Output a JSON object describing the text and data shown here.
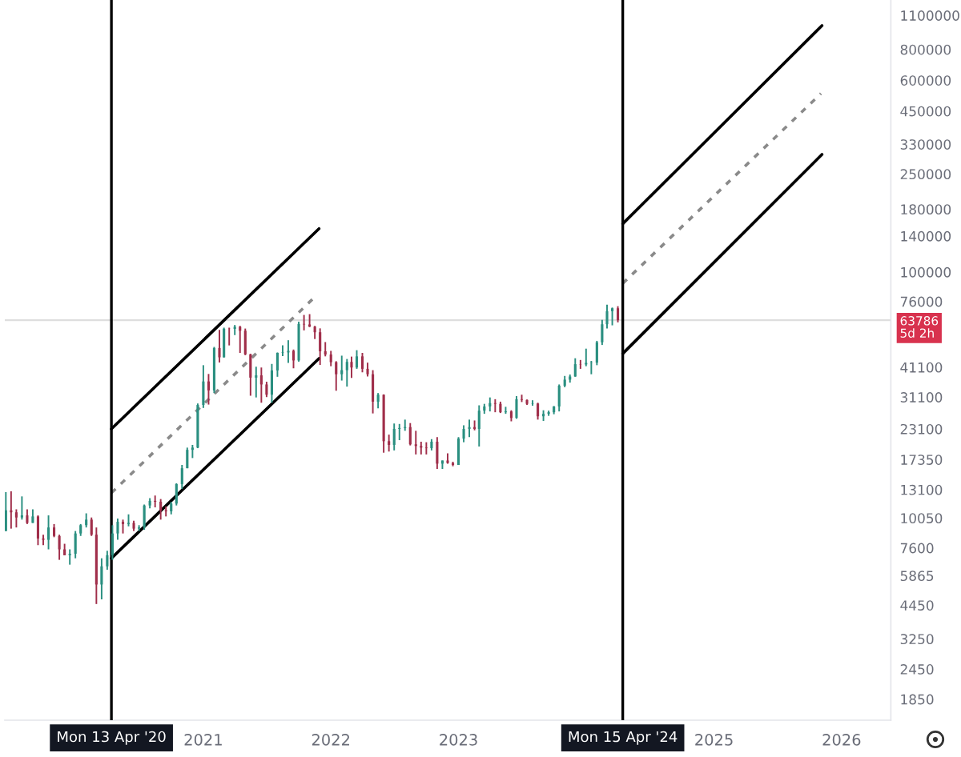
{
  "chart_data": {
    "type": "candlestick",
    "x": [
      "2019-06-16",
      "2019-07-01",
      "2019-07-16",
      "2019-08-01",
      "2019-08-16",
      "2019-09-01",
      "2019-09-16",
      "2019-10-01",
      "2019-10-16",
      "2019-11-01",
      "2019-11-16",
      "2019-12-01",
      "2019-12-16",
      "2020-01-01",
      "2020-01-16",
      "2020-02-01",
      "2020-02-16",
      "2020-03-01",
      "2020-03-16",
      "2020-04-01",
      "2020-04-16",
      "2020-05-01",
      "2020-05-16",
      "2020-06-01",
      "2020-06-16",
      "2020-07-01",
      "2020-07-16",
      "2020-08-01",
      "2020-08-16",
      "2020-09-01",
      "2020-09-16",
      "2020-10-01",
      "2020-10-16",
      "2020-11-01",
      "2020-11-16",
      "2020-12-01",
      "2020-12-16",
      "2021-01-01",
      "2021-01-16",
      "2021-02-01",
      "2021-02-16",
      "2021-03-01",
      "2021-03-16",
      "2021-04-01",
      "2021-04-16",
      "2021-05-01",
      "2021-05-16",
      "2021-06-01",
      "2021-06-16",
      "2021-07-01",
      "2021-07-16",
      "2021-08-01",
      "2021-08-16",
      "2021-09-01",
      "2021-09-16",
      "2021-10-01",
      "2021-10-16",
      "2021-11-01",
      "2021-11-16",
      "2021-12-01",
      "2021-12-16",
      "2022-01-01",
      "2022-01-16",
      "2022-02-01",
      "2022-02-16",
      "2022-03-01",
      "2022-03-16",
      "2022-04-01",
      "2022-04-16",
      "2022-05-01",
      "2022-05-16",
      "2022-06-01",
      "2022-06-16",
      "2022-07-01",
      "2022-07-16",
      "2022-08-01",
      "2022-08-16",
      "2022-09-01",
      "2022-09-16",
      "2022-10-01",
      "2022-10-16",
      "2022-11-01",
      "2022-11-16",
      "2022-12-01",
      "2022-12-16",
      "2023-01-01",
      "2023-01-16",
      "2023-02-01",
      "2023-02-16",
      "2023-03-01",
      "2023-03-16",
      "2023-04-01",
      "2023-04-16",
      "2023-05-01",
      "2023-05-16",
      "2023-06-01",
      "2023-06-16",
      "2023-07-01",
      "2023-07-16",
      "2023-08-01",
      "2023-08-16",
      "2023-09-01",
      "2023-09-16",
      "2023-10-01",
      "2023-10-16",
      "2023-11-01",
      "2023-11-16",
      "2023-12-01",
      "2023-12-16",
      "2024-01-01",
      "2024-01-16",
      "2024-02-01",
      "2024-02-16",
      "2024-03-01",
      "2024-03-16",
      "2024-04-01"
    ],
    "ohlc": [
      [
        8900,
        12800,
        8900,
        10800
      ],
      [
        10800,
        12900,
        9100,
        10600
      ],
      [
        10600,
        10900,
        9200,
        10100
      ],
      [
        10100,
        12300,
        9900,
        10300
      ],
      [
        10300,
        10900,
        9500,
        9600
      ],
      [
        9600,
        10900,
        9600,
        10200
      ],
      [
        10200,
        10300,
        7800,
        8300
      ],
      [
        8300,
        8600,
        7800,
        8200
      ],
      [
        8200,
        10300,
        7500,
        9200
      ],
      [
        9200,
        9500,
        8400,
        8500
      ],
      [
        8500,
        8600,
        6800,
        7500
      ],
      [
        7500,
        7900,
        7100,
        7100
      ],
      [
        7100,
        7500,
        6500,
        7200
      ],
      [
        7200,
        8900,
        6900,
        8700
      ],
      [
        8700,
        9500,
        8500,
        9400
      ],
      [
        9400,
        10500,
        9200,
        9900
      ],
      [
        9900,
        10100,
        8500,
        8600
      ],
      [
        8600,
        9200,
        4500,
        5400
      ],
      [
        5400,
        6900,
        4700,
        6400
      ],
      [
        6400,
        7400,
        6200,
        7100
      ],
      [
        7100,
        9400,
        6800,
        8700
      ],
      [
        8700,
        10000,
        8200,
        9700
      ],
      [
        9700,
        9900,
        8700,
        9500
      ],
      [
        9500,
        10400,
        9300,
        9600
      ],
      [
        9600,
        9800,
        8900,
        9100
      ],
      [
        9100,
        9400,
        8900,
        9200
      ],
      [
        9200,
        11400,
        9000,
        11300
      ],
      [
        11300,
        12100,
        11000,
        11800
      ],
      [
        11800,
        12400,
        11100,
        11700
      ],
      [
        11700,
        12000,
        9900,
        10800
      ],
      [
        10800,
        11200,
        10200,
        10700
      ],
      [
        10700,
        11700,
        10400,
        11500
      ],
      [
        11500,
        13900,
        11300,
        13800
      ],
      [
        13800,
        16500,
        13200,
        16000
      ],
      [
        16000,
        19400,
        16000,
        19000
      ],
      [
        19000,
        19900,
        17600,
        19400
      ],
      [
        19400,
        29300,
        19300,
        28900
      ],
      [
        28900,
        41900,
        28100,
        36000
      ],
      [
        36000,
        38600,
        29000,
        33100
      ],
      [
        33100,
        49700,
        32300,
        49200
      ],
      [
        49200,
        58300,
        43000,
        45100
      ],
      [
        45100,
        59500,
        45000,
        58900
      ],
      [
        58900,
        59500,
        50400,
        58800
      ],
      [
        58800,
        61000,
        55500,
        60000
      ],
      [
        60000,
        60500,
        47000,
        57800
      ],
      [
        57800,
        59000,
        46000,
        46400
      ],
      [
        46400,
        46600,
        31500,
        37300
      ],
      [
        37300,
        41300,
        31000,
        38100
      ],
      [
        38100,
        41000,
        29500,
        35000
      ],
      [
        35000,
        35900,
        31100,
        31800
      ],
      [
        31800,
        42400,
        29500,
        39900
      ],
      [
        39900,
        47200,
        37600,
        47000
      ],
      [
        47000,
        50500,
        45600,
        47200
      ],
      [
        47200,
        52900,
        42800,
        47900
      ],
      [
        47900,
        48500,
        40700,
        43800
      ],
      [
        43800,
        62900,
        43300,
        61600
      ],
      [
        61600,
        67000,
        58000,
        61300
      ],
      [
        61300,
        67500,
        59800,
        60100
      ],
      [
        60100,
        60500,
        53500,
        57000
      ],
      [
        57000,
        59100,
        42000,
        47700
      ],
      [
        47700,
        52000,
        45500,
        46300
      ],
      [
        46300,
        47900,
        41500,
        43100
      ],
      [
        43100,
        43500,
        33000,
        38500
      ],
      [
        38500,
        45800,
        36300,
        40000
      ],
      [
        40000,
        44400,
        34300,
        43200
      ],
      [
        43200,
        45400,
        37200,
        41000
      ],
      [
        41000,
        48200,
        40500,
        45500
      ],
      [
        45500,
        47000,
        39200,
        40500
      ],
      [
        40500,
        42900,
        37700,
        38500
      ],
      [
        38500,
        40000,
        26700,
        29800
      ],
      [
        29800,
        32300,
        28000,
        31800
      ],
      [
        31800,
        31900,
        18500,
        20600
      ],
      [
        20600,
        21900,
        18700,
        19900
      ],
      [
        19900,
        24300,
        18900,
        23100
      ],
      [
        23100,
        24200,
        20800,
        23300
      ],
      [
        23300,
        25200,
        22700,
        23500
      ],
      [
        23500,
        24400,
        19800,
        20000
      ],
      [
        20000,
        22700,
        18200,
        19700
      ],
      [
        19700,
        20500,
        18200,
        19400
      ],
      [
        19400,
        20400,
        18200,
        19300
      ],
      [
        19300,
        21000,
        18900,
        20500
      ],
      [
        20500,
        21400,
        15900,
        16700
      ],
      [
        16700,
        17200,
        15900,
        17200
      ],
      [
        17200,
        18400,
        16700,
        16800
      ],
      [
        16800,
        17000,
        16300,
        16500
      ],
      [
        16500,
        21400,
        16500,
        21100
      ],
      [
        21100,
        23900,
        20400,
        23100
      ],
      [
        23100,
        25200,
        21400,
        23500
      ],
      [
        23500,
        25000,
        22800,
        23100
      ],
      [
        23100,
        28800,
        19600,
        27400
      ],
      [
        27400,
        29200,
        26600,
        28500
      ],
      [
        28500,
        31000,
        27200,
        29400
      ],
      [
        29400,
        30500,
        27000,
        29200
      ],
      [
        29200,
        29800,
        26800,
        27000
      ],
      [
        27000,
        28400,
        26600,
        27200
      ],
      [
        27200,
        27500,
        24800,
        25600
      ],
      [
        25600,
        31400,
        25400,
        30500
      ],
      [
        30500,
        31800,
        29700,
        30300
      ],
      [
        30300,
        30400,
        28900,
        29200
      ],
      [
        29200,
        30200,
        28700,
        29300
      ],
      [
        29300,
        29500,
        25200,
        26000
      ],
      [
        26000,
        27500,
        24900,
        26600
      ],
      [
        26600,
        27400,
        26100,
        27000
      ],
      [
        27000,
        28600,
        26500,
        28500
      ],
      [
        28500,
        35000,
        27200,
        34600
      ],
      [
        34600,
        37900,
        34100,
        36600
      ],
      [
        36600,
        38400,
        35600,
        37700
      ],
      [
        37700,
        44700,
        37600,
        42300
      ],
      [
        42300,
        44000,
        40500,
        42200
      ],
      [
        42200,
        48900,
        41500,
        42800
      ],
      [
        42800,
        43600,
        38500,
        42900
      ],
      [
        42900,
        52600,
        41900,
        51900
      ],
      [
        51900,
        64000,
        50600,
        61400
      ],
      [
        61400,
        73700,
        59000,
        69400
      ],
      [
        69400,
        71800,
        60800,
        71300
      ],
      [
        71300,
        72700,
        62500,
        63786
      ]
    ],
    "colors": [
      "#2a8f80",
      "#a02e4a",
      "#a02e4a",
      "#2a8f80",
      "#a02e4a",
      "#2a8f80",
      "#a02e4a",
      "#a02e4a",
      "#2a8f80",
      "#a02e4a",
      "#a02e4a",
      "#a02e4a",
      "#2a8f80",
      "#2a8f80",
      "#2a8f80",
      "#2a8f80",
      "#a02e4a",
      "#a02e4a",
      "#2a8f80",
      "#2a8f80",
      "#2a8f80",
      "#2a8f80",
      "#a02e4a",
      "#2a8f80",
      "#a02e4a",
      "#2a8f80",
      "#2a8f80",
      "#2a8f80",
      "#a02e4a",
      "#a02e4a",
      "#a02e4a",
      "#2a8f80",
      "#2a8f80",
      "#2a8f80",
      "#2a8f80",
      "#2a8f80",
      "#2a8f80",
      "#2a8f80",
      "#a02e4a",
      "#2a8f80",
      "#a02e4a",
      "#2a8f80",
      "#a02e4a",
      "#2a8f80",
      "#a02e4a",
      "#a02e4a",
      "#a02e4a",
      "#2a8f80",
      "#a02e4a",
      "#a02e4a",
      "#2a8f80",
      "#2a8f80",
      "#2a8f80",
      "#2a8f80",
      "#a02e4a",
      "#2a8f80",
      "#a02e4a",
      "#a02e4a",
      "#a02e4a",
      "#a02e4a",
      "#a02e4a",
      "#a02e4a",
      "#a02e4a",
      "#2a8f80",
      "#2a8f80",
      "#a02e4a",
      "#2a8f80",
      "#a02e4a",
      "#a02e4a",
      "#a02e4a",
      "#2a8f80",
      "#a02e4a",
      "#a02e4a",
      "#2a8f80",
      "#2a8f80",
      "#2a8f80",
      "#a02e4a",
      "#a02e4a",
      "#a02e4a",
      "#a02e4a",
      "#2a8f80",
      "#a02e4a",
      "#2a8f80",
      "#a02e4a",
      "#a02e4a",
      "#2a8f80",
      "#2a8f80",
      "#2a8f80",
      "#a02e4a",
      "#2a8f80",
      "#2a8f80",
      "#2a8f80",
      "#a02e4a",
      "#a02e4a",
      "#2a8f80",
      "#a02e4a",
      "#2a8f80",
      "#a02e4a",
      "#a02e4a",
      "#2a8f80",
      "#a02e4a",
      "#2a8f80",
      "#2a8f80",
      "#2a8f80",
      "#2a8f80",
      "#2a8f80",
      "#2a8f80",
      "#2a8f80",
      "#a02e4a",
      "#2a8f80",
      "#2a8f80",
      "#2a8f80",
      "#2a8f80",
      "#2a8f80",
      "#2a8f80",
      "#a02e4a"
    ],
    "series": [
      {
        "type": "line",
        "x": [
          "2020-04-13",
          "2021-11-28"
        ],
        "values": [
          23100,
          150000
        ],
        "color": "#000000",
        "line_style": "solid"
      },
      {
        "type": "line",
        "x": [
          "2020-04-13",
          "2021-11-19"
        ],
        "values": [
          12700,
          80000
        ],
        "color": "#8a8a8a",
        "line_style": "dotted"
      },
      {
        "type": "line",
        "x": [
          "2020-04-13",
          "2021-11-28"
        ],
        "values": [
          6900,
          44600
        ],
        "color": "#000000",
        "line_style": "solid"
      },
      {
        "type": "line",
        "x": [
          "2024-04-15",
          "2025-11-06"
        ],
        "values": [
          157000,
          1000000
        ],
        "color": "#000000",
        "line_style": "solid"
      },
      {
        "type": "line",
        "x": [
          "2024-04-15",
          "2025-11-03"
        ],
        "values": [
          90000,
          530000
        ],
        "color": "#8a8a8a",
        "line_style": "dotted"
      },
      {
        "type": "line",
        "x": [
          "2024-04-15",
          "2025-11-06"
        ],
        "values": [
          46700,
          300000
        ],
        "color": "#000000",
        "line_style": "solid"
      }
    ],
    "log": true,
    "xlim": [
      "2019-06-13",
      "2026-05-22"
    ],
    "xticks": [
      {
        "value": "2021-01-01",
        "label": "2021"
      },
      {
        "value": "2022-01-01",
        "label": "2022"
      },
      {
        "value": "2023-01-01",
        "label": "2023"
      },
      {
        "value": "2025-01-01",
        "label": "2025"
      },
      {
        "value": "2026-01-01",
        "label": "2026"
      }
    ],
    "ylim": [
      1520,
      1270000
    ],
    "yticks": [
      1850,
      2450,
      3250,
      4450,
      5865,
      7600,
      10050,
      13100,
      17350,
      23100,
      31100,
      41100,
      76000,
      100000,
      140000,
      180000,
      250000,
      330000,
      450000,
      600000,
      800000,
      1100000
    ],
    "ref_lines": [
      {
        "axis": "x",
        "value": "2020-04-13",
        "label": "Mon 13 Apr '20",
        "color": "#000000"
      },
      {
        "axis": "x",
        "value": "2024-04-15",
        "label": "Mon 15 Apr '24",
        "color": "#000000"
      },
      {
        "axis": "y",
        "value": 63786,
        "label": "63786\n5d 2h",
        "color": "#dedede"
      }
    ]
  }
}
